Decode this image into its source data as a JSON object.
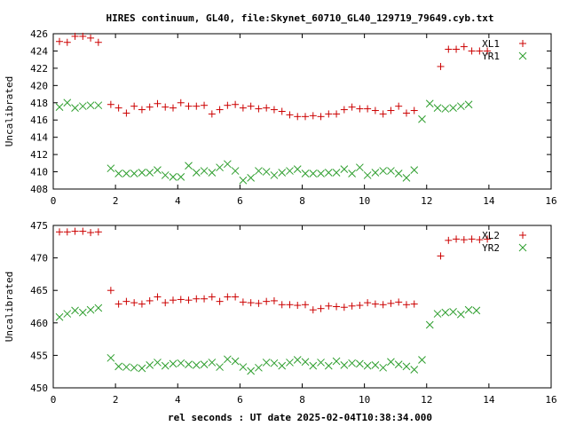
{
  "title": "HIRES continuum, GL40, file:Skynet_60710_GL40_129719_79649.cyb.txt",
  "xlabel": "rel seconds : UT date 2025-02-04T10:38:34.000",
  "colors": {
    "plus_series": "#cc0000",
    "cross_series": "#2e9e2e",
    "axes": "#000000"
  },
  "chart_data": [
    {
      "type": "scatter",
      "ylabel": "Uncalibrated",
      "xlim": [
        0,
        16
      ],
      "ylim": [
        408,
        426
      ],
      "xticks": [
        0,
        2,
        4,
        6,
        8,
        10,
        12,
        14,
        16
      ],
      "yticks": [
        408,
        410,
        412,
        414,
        416,
        418,
        420,
        422,
        424,
        426
      ],
      "grid": false,
      "legend_position": "top-right",
      "series": [
        {
          "name": "XL1",
          "marker": "plus",
          "color": "#cc0000",
          "points": [
            [
              0.2,
              425.1
            ],
            [
              0.45,
              425.0
            ],
            [
              0.7,
              425.7
            ],
            [
              0.95,
              425.7
            ],
            [
              1.2,
              425.5
            ],
            [
              1.45,
              425.0
            ],
            [
              1.85,
              417.8
            ],
            [
              2.1,
              417.4
            ],
            [
              2.35,
              416.8
            ],
            [
              2.6,
              417.6
            ],
            [
              2.85,
              417.2
            ],
            [
              3.1,
              417.5
            ],
            [
              3.35,
              417.9
            ],
            [
              3.6,
              417.5
            ],
            [
              3.85,
              417.4
            ],
            [
              4.1,
              418.0
            ],
            [
              4.35,
              417.6
            ],
            [
              4.6,
              417.6
            ],
            [
              4.85,
              417.7
            ],
            [
              5.1,
              416.7
            ],
            [
              5.35,
              417.2
            ],
            [
              5.6,
              417.7
            ],
            [
              5.85,
              417.8
            ],
            [
              6.1,
              417.4
            ],
            [
              6.35,
              417.6
            ],
            [
              6.6,
              417.3
            ],
            [
              6.85,
              417.4
            ],
            [
              7.1,
              417.2
            ],
            [
              7.35,
              417.0
            ],
            [
              7.6,
              416.6
            ],
            [
              7.85,
              416.4
            ],
            [
              8.1,
              416.4
            ],
            [
              8.35,
              416.5
            ],
            [
              8.6,
              416.4
            ],
            [
              8.85,
              416.7
            ],
            [
              9.1,
              416.7
            ],
            [
              9.35,
              417.2
            ],
            [
              9.6,
              417.5
            ],
            [
              9.85,
              417.3
            ],
            [
              10.1,
              417.3
            ],
            [
              10.35,
              417.1
            ],
            [
              10.6,
              416.7
            ],
            [
              10.85,
              417.1
            ],
            [
              11.1,
              417.6
            ],
            [
              11.35,
              416.8
            ],
            [
              11.6,
              417.1
            ],
            [
              12.45,
              422.2
            ],
            [
              12.7,
              424.2
            ],
            [
              12.95,
              424.2
            ],
            [
              13.2,
              424.5
            ],
            [
              13.45,
              424.0
            ],
            [
              13.7,
              424.0
            ],
            [
              13.95,
              424.0
            ]
          ]
        },
        {
          "name": "YR1",
          "marker": "cross",
          "color": "#2e9e2e",
          "points": [
            [
              0.2,
              417.5
            ],
            [
              0.45,
              418.0
            ],
            [
              0.7,
              417.4
            ],
            [
              0.95,
              417.6
            ],
            [
              1.2,
              417.7
            ],
            [
              1.45,
              417.7
            ],
            [
              1.85,
              410.4
            ],
            [
              2.1,
              409.8
            ],
            [
              2.35,
              409.8
            ],
            [
              2.6,
              409.8
            ],
            [
              2.85,
              409.9
            ],
            [
              3.1,
              409.9
            ],
            [
              3.35,
              410.2
            ],
            [
              3.6,
              409.6
            ],
            [
              3.85,
              409.4
            ],
            [
              4.1,
              409.4
            ],
            [
              4.35,
              410.7
            ],
            [
              4.6,
              409.9
            ],
            [
              4.85,
              410.1
            ],
            [
              5.1,
              409.9
            ],
            [
              5.35,
              410.5
            ],
            [
              5.6,
              410.9
            ],
            [
              5.85,
              410.1
            ],
            [
              6.1,
              409.0
            ],
            [
              6.35,
              409.3
            ],
            [
              6.6,
              410.1
            ],
            [
              6.85,
              410.0
            ],
            [
              7.1,
              409.6
            ],
            [
              7.35,
              409.9
            ],
            [
              7.6,
              410.1
            ],
            [
              7.85,
              410.3
            ],
            [
              8.1,
              409.8
            ],
            [
              8.35,
              409.8
            ],
            [
              8.6,
              409.8
            ],
            [
              8.85,
              409.9
            ],
            [
              9.1,
              409.9
            ],
            [
              9.35,
              410.3
            ],
            [
              9.6,
              409.8
            ],
            [
              9.85,
              410.5
            ],
            [
              10.1,
              409.6
            ],
            [
              10.35,
              409.9
            ],
            [
              10.6,
              410.1
            ],
            [
              10.85,
              410.1
            ],
            [
              11.1,
              409.8
            ],
            [
              11.35,
              409.3
            ],
            [
              11.6,
              410.2
            ],
            [
              11.85,
              416.1
            ],
            [
              12.1,
              417.9
            ],
            [
              12.35,
              417.4
            ],
            [
              12.6,
              417.3
            ],
            [
              12.85,
              417.4
            ],
            [
              13.1,
              417.6
            ],
            [
              13.35,
              417.8
            ]
          ]
        }
      ]
    },
    {
      "type": "scatter",
      "ylabel": "Uncalibrated",
      "xlim": [
        0,
        16
      ],
      "ylim": [
        450,
        475
      ],
      "xticks": [
        0,
        2,
        4,
        6,
        8,
        10,
        12,
        14,
        16
      ],
      "yticks": [
        450,
        455,
        460,
        465,
        470,
        475
      ],
      "grid": false,
      "legend_position": "top-right",
      "series": [
        {
          "name": "XL2",
          "marker": "plus",
          "color": "#cc0000",
          "points": [
            [
              0.2,
              474.0
            ],
            [
              0.45,
              474.0
            ],
            [
              0.7,
              474.1
            ],
            [
              0.95,
              474.1
            ],
            [
              1.2,
              473.9
            ],
            [
              1.45,
              474.0
            ],
            [
              1.85,
              465.0
            ],
            [
              2.1,
              462.9
            ],
            [
              2.35,
              463.3
            ],
            [
              2.6,
              463.1
            ],
            [
              2.85,
              462.9
            ],
            [
              3.1,
              463.4
            ],
            [
              3.35,
              464.0
            ],
            [
              3.6,
              463.1
            ],
            [
              3.85,
              463.5
            ],
            [
              4.1,
              463.6
            ],
            [
              4.35,
              463.5
            ],
            [
              4.6,
              463.7
            ],
            [
              4.85,
              463.7
            ],
            [
              5.1,
              464.0
            ],
            [
              5.35,
              463.3
            ],
            [
              5.6,
              464.0
            ],
            [
              5.85,
              464.0
            ],
            [
              6.1,
              463.2
            ],
            [
              6.35,
              463.1
            ],
            [
              6.6,
              463.0
            ],
            [
              6.85,
              463.3
            ],
            [
              7.1,
              463.4
            ],
            [
              7.35,
              462.8
            ],
            [
              7.6,
              462.8
            ],
            [
              7.85,
              462.7
            ],
            [
              8.1,
              462.8
            ],
            [
              8.35,
              462.0
            ],
            [
              8.6,
              462.2
            ],
            [
              8.85,
              462.6
            ],
            [
              9.1,
              462.5
            ],
            [
              9.35,
              462.4
            ],
            [
              9.6,
              462.6
            ],
            [
              9.85,
              462.7
            ],
            [
              10.1,
              463.1
            ],
            [
              10.35,
              462.9
            ],
            [
              10.6,
              462.8
            ],
            [
              10.85,
              463.0
            ],
            [
              11.1,
              463.2
            ],
            [
              11.35,
              462.8
            ],
            [
              11.6,
              462.9
            ],
            [
              12.45,
              470.3
            ],
            [
              12.7,
              472.7
            ],
            [
              12.95,
              472.9
            ],
            [
              13.2,
              472.8
            ],
            [
              13.45,
              472.9
            ],
            [
              13.7,
              472.8
            ],
            [
              13.95,
              472.9
            ]
          ]
        },
        {
          "name": "YR2",
          "marker": "cross",
          "color": "#2e9e2e",
          "points": [
            [
              0.2,
              460.9
            ],
            [
              0.45,
              461.4
            ],
            [
              0.7,
              461.9
            ],
            [
              0.95,
              461.6
            ],
            [
              1.2,
              462.0
            ],
            [
              1.45,
              462.3
            ],
            [
              1.85,
              454.6
            ],
            [
              2.1,
              453.3
            ],
            [
              2.35,
              453.2
            ],
            [
              2.6,
              453.1
            ],
            [
              2.85,
              453.0
            ],
            [
              3.1,
              453.5
            ],
            [
              3.35,
              453.9
            ],
            [
              3.6,
              453.4
            ],
            [
              3.85,
              453.7
            ],
            [
              4.1,
              453.8
            ],
            [
              4.35,
              453.6
            ],
            [
              4.6,
              453.5
            ],
            [
              4.85,
              453.6
            ],
            [
              5.1,
              453.9
            ],
            [
              5.35,
              453.2
            ],
            [
              5.6,
              454.4
            ],
            [
              5.85,
              454.1
            ],
            [
              6.1,
              453.2
            ],
            [
              6.35,
              452.6
            ],
            [
              6.6,
              453.1
            ],
            [
              6.85,
              453.9
            ],
            [
              7.1,
              453.8
            ],
            [
              7.35,
              453.4
            ],
            [
              7.6,
              453.9
            ],
            [
              7.85,
              454.3
            ],
            [
              8.1,
              454.0
            ],
            [
              8.35,
              453.4
            ],
            [
              8.6,
              453.9
            ],
            [
              8.85,
              453.4
            ],
            [
              9.1,
              454.1
            ],
            [
              9.35,
              453.5
            ],
            [
              9.6,
              453.8
            ],
            [
              9.85,
              453.7
            ],
            [
              10.1,
              453.4
            ],
            [
              10.35,
              453.5
            ],
            [
              10.6,
              453.1
            ],
            [
              10.85,
              454.0
            ],
            [
              11.1,
              453.6
            ],
            [
              11.35,
              453.3
            ],
            [
              11.6,
              452.8
            ],
            [
              11.85,
              454.3
            ],
            [
              12.1,
              459.7
            ],
            [
              12.35,
              461.4
            ],
            [
              12.6,
              461.6
            ],
            [
              12.85,
              461.7
            ],
            [
              13.1,
              461.3
            ],
            [
              13.35,
              462.0
            ],
            [
              13.6,
              461.9
            ]
          ]
        }
      ]
    }
  ]
}
